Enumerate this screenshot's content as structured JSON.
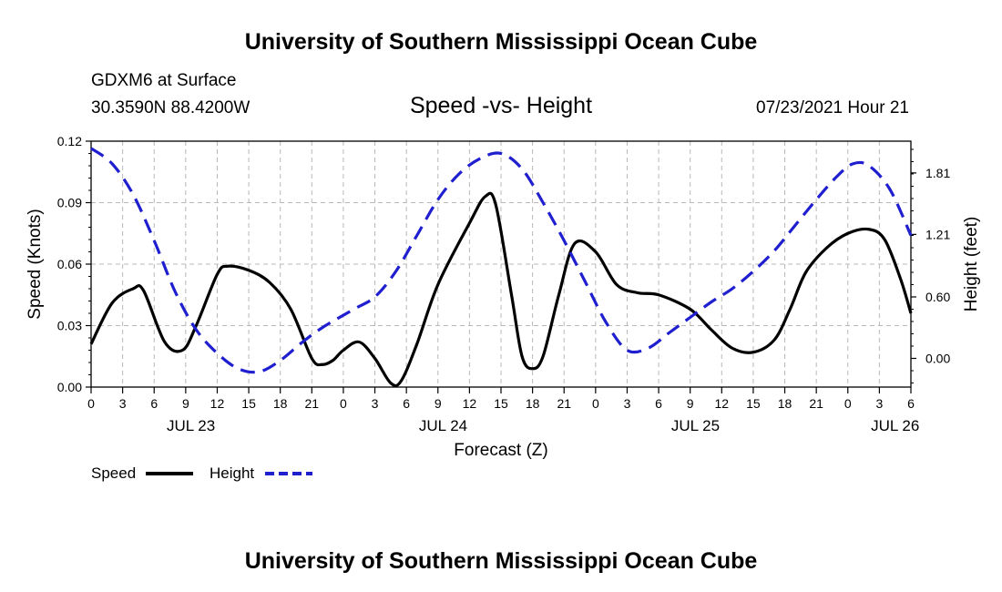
{
  "header": {
    "title_top": "University of Southern Mississippi Ocean Cube",
    "station": "GDXM6 at Surface",
    "location": "30.3590N  88.4200W",
    "subtitle": "Speed -vs- Height",
    "datetime": "07/23/2021 Hour 21",
    "title_bottom": "University of Southern Mississippi Ocean Cube"
  },
  "chart_data": {
    "type": "line",
    "xlabel": "Forecast (Z)",
    "x_unit": "hours since 07/23/2021 00Z",
    "xlim": [
      0,
      78
    ],
    "x_ticks": [
      0,
      3,
      6,
      9,
      12,
      15,
      18,
      21,
      24,
      27,
      30,
      33,
      36,
      39,
      42,
      45,
      48,
      51,
      54,
      57,
      60,
      63,
      66,
      69,
      72,
      75,
      78
    ],
    "x_tick_labels": [
      "0",
      "3",
      "6",
      "9",
      "12",
      "15",
      "18",
      "21",
      "0",
      "3",
      "6",
      "9",
      "12",
      "15",
      "18",
      "21",
      "0",
      "3",
      "6",
      "9",
      "12",
      "15",
      "18",
      "21",
      "0",
      "3",
      "6"
    ],
    "day_labels": [
      {
        "x": 9.5,
        "label": "JUL 23"
      },
      {
        "x": 33.5,
        "label": "JUL 24"
      },
      {
        "x": 57.5,
        "label": "JUL 25"
      },
      {
        "x": 76.5,
        "label": "JUL 26"
      }
    ],
    "y_left": {
      "label": "Speed (Knots)",
      "lim": [
        0,
        0.12
      ],
      "ticks": [
        0,
        0.03,
        0.06,
        0.09,
        0.12
      ],
      "tick_labels": [
        "0.00",
        "0.03",
        "0.06",
        "0.09",
        "0.12"
      ]
    },
    "y_right": {
      "label": "Height (feet)",
      "lim": [
        -0.28,
        2.12
      ],
      "ticks": [
        0,
        0.6,
        1.21,
        1.81
      ],
      "tick_labels": [
        "0.00",
        "0.60",
        "1.21",
        "1.81"
      ]
    },
    "grid": true,
    "series": [
      {
        "name": "Speed",
        "axis": "left",
        "color": "#000000",
        "dash": "solid",
        "x": [
          0,
          2,
          4,
          5,
          7,
          8.7,
          10,
          12,
          13,
          15,
          17,
          19,
          21,
          22,
          23,
          24,
          25.5,
          27,
          28.5,
          29.5,
          31,
          33,
          36,
          37.5,
          38.5,
          40,
          41,
          42,
          43,
          44.5,
          46,
          48,
          50,
          52,
          54,
          57,
          59,
          61,
          63,
          65,
          66.5,
          68,
          70,
          72,
          74,
          75.5,
          77,
          78
        ],
        "y": [
          0.021,
          0.041,
          0.048,
          0.047,
          0.022,
          0.018,
          0.03,
          0.055,
          0.059,
          0.057,
          0.051,
          0.038,
          0.014,
          0.011,
          0.013,
          0.018,
          0.022,
          0.014,
          0.002,
          0.003,
          0.021,
          0.05,
          0.08,
          0.093,
          0.089,
          0.045,
          0.015,
          0.009,
          0.015,
          0.045,
          0.07,
          0.066,
          0.05,
          0.046,
          0.045,
          0.038,
          0.028,
          0.019,
          0.017,
          0.023,
          0.038,
          0.056,
          0.068,
          0.075,
          0.077,
          0.072,
          0.053,
          0.036
        ]
      },
      {
        "name": "Height",
        "axis": "right",
        "color": "#1f1fd0",
        "dash": "dashed",
        "x": [
          0,
          2,
          4,
          6,
          8,
          10,
          12,
          14,
          16,
          18,
          20,
          22,
          25,
          27,
          29,
          31,
          33,
          35,
          37,
          39,
          41,
          43,
          45,
          47,
          49,
          51,
          53,
          55,
          57,
          59,
          61,
          63,
          65,
          67,
          69,
          71,
          72.5,
          74,
          76,
          78
        ],
        "y": [
          2.05,
          1.9,
          1.6,
          1.15,
          0.65,
          0.28,
          0.05,
          -0.1,
          -0.13,
          -0.02,
          0.15,
          0.3,
          0.48,
          0.6,
          0.85,
          1.2,
          1.55,
          1.8,
          1.95,
          2.0,
          1.85,
          1.52,
          1.15,
          0.75,
          0.35,
          0.08,
          0.1,
          0.25,
          0.4,
          0.55,
          0.68,
          0.85,
          1.05,
          1.3,
          1.55,
          1.78,
          1.9,
          1.88,
          1.65,
          1.2
        ]
      }
    ]
  },
  "legend": {
    "speed_label": "Speed",
    "height_label": "Height",
    "placement": "bottom-left"
  }
}
